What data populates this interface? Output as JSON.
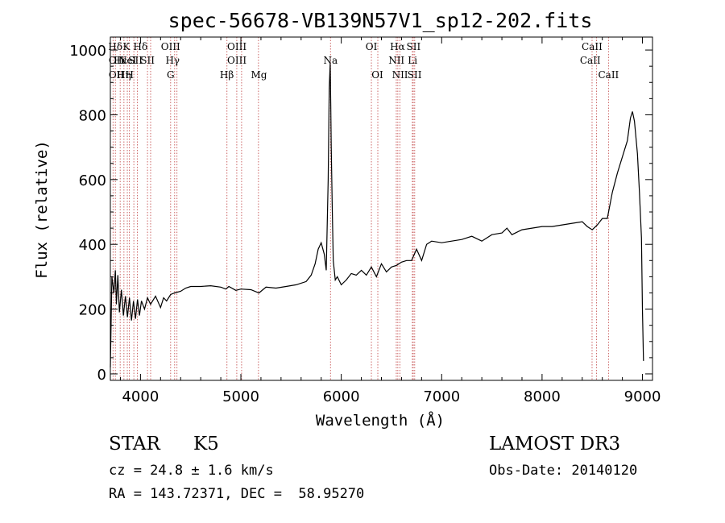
{
  "chart_data": {
    "type": "line",
    "title": "spec-56678-VB139N57V1_sp12-202.fits",
    "xlabel": "Wavelength (Å)",
    "ylabel": "Flux (relative)",
    "xlim": [
      3700,
      9100
    ],
    "ylim": [
      -20,
      1040
    ],
    "xticks": [
      4000,
      5000,
      6000,
      7000,
      8000,
      9000
    ],
    "yticks": [
      0,
      200,
      400,
      600,
      800,
      1000
    ],
    "grid": false,
    "colors": {
      "line": "#000000",
      "marker": "#cc6666"
    },
    "series": [
      {
        "x": [
          3700,
          3715,
          3735,
          3750,
          3760,
          3775,
          3790,
          3810,
          3830,
          3850,
          3870,
          3890,
          3910,
          3930,
          3950,
          3970,
          3990,
          4010,
          4040,
          4070,
          4100,
          4150,
          4200,
          4230,
          4260,
          4300,
          4340,
          4400,
          4450,
          4500,
          4600,
          4700,
          4800,
          4850,
          4880,
          4950,
          5000,
          5100,
          5180,
          5250,
          5350,
          5450,
          5550,
          5650,
          5700,
          5740,
          5770,
          5800,
          5830,
          5850,
          5870,
          5880,
          5890,
          5895,
          5900,
          5910,
          5920,
          5940,
          5960,
          6000,
          6050,
          6100,
          6150,
          6200,
          6250,
          6300,
          6350,
          6400,
          6450,
          6500,
          6550,
          6600,
          6650,
          6700,
          6750,
          6800,
          6850,
          6900,
          7000,
          7100,
          7200,
          7300,
          7400,
          7500,
          7600,
          7650,
          7700,
          7800,
          7900,
          8000,
          8100,
          8200,
          8300,
          8400,
          8450,
          8500,
          8550,
          8600,
          8650,
          8700,
          8750,
          8800,
          8850,
          8880,
          8900,
          8920,
          8950,
          8970,
          8990,
          9000,
          9010
        ],
        "y": [
          20,
          300,
          250,
          320,
          215,
          305,
          190,
          260,
          180,
          240,
          175,
          235,
          165,
          225,
          170,
          230,
          180,
          225,
          200,
          235,
          215,
          240,
          205,
          235,
          225,
          245,
          250,
          255,
          265,
          270,
          270,
          272,
          268,
          262,
          270,
          258,
          262,
          260,
          250,
          268,
          265,
          270,
          275,
          285,
          305,
          340,
          385,
          405,
          370,
          320,
          600,
          880,
          960,
          830,
          700,
          520,
          350,
          290,
          300,
          275,
          290,
          310,
          305,
          320,
          305,
          330,
          300,
          340,
          315,
          330,
          335,
          345,
          350,
          350,
          385,
          350,
          400,
          410,
          405,
          410,
          415,
          425,
          410,
          430,
          435,
          450,
          430,
          445,
          450,
          455,
          455,
          460,
          465,
          470,
          455,
          445,
          460,
          480,
          480,
          560,
          620,
          670,
          720,
          790,
          810,
          780,
          680,
          560,
          420,
          200,
          40
        ]
      }
    ],
    "line_labels": [
      {
        "x": 3750,
        "text": "Hδ",
        "row": 0
      },
      {
        "x": 3760,
        "text": "OII",
        "row": 1
      },
      {
        "x": 3760,
        "text": "OII",
        "row": 2
      },
      {
        "x": 3800,
        "text": "Hε",
        "row": 1
      },
      {
        "x": 3835,
        "text": "Hη",
        "row": 2
      },
      {
        "x": 3860,
        "text": "K",
        "row": 0
      },
      {
        "x": 3870,
        "text": "NeI",
        "row": 1
      },
      {
        "x": 3890,
        "text": "H",
        "row": 2
      },
      {
        "x": 3950,
        "text": "SII",
        "row": 1
      },
      {
        "x": 4000,
        "text": "Hδ",
        "row": 0
      },
      {
        "x": 4070,
        "text": "SII",
        "row": 1
      },
      {
        "x": 4300,
        "text": "OIII",
        "row": 0
      },
      {
        "x": 4320,
        "text": "Hγ",
        "row": 1
      },
      {
        "x": 4300,
        "text": "G",
        "row": 2
      },
      {
        "x": 4860,
        "text": "Hβ",
        "row": 2
      },
      {
        "x": 4960,
        "text": "OIII",
        "row": 0
      },
      {
        "x": 4960,
        "text": "OIII",
        "row": 1
      },
      {
        "x": 5180,
        "text": "Mg",
        "row": 2
      },
      {
        "x": 5893,
        "text": "Na",
        "row": 1
      },
      {
        "x": 6300,
        "text": "OI",
        "row": 0
      },
      {
        "x": 6360,
        "text": "OI",
        "row": 2
      },
      {
        "x": 6560,
        "text": "Hα",
        "row": 0
      },
      {
        "x": 6550,
        "text": "NII",
        "row": 1
      },
      {
        "x": 6585,
        "text": "NII",
        "row": 2
      },
      {
        "x": 6720,
        "text": "SII",
        "row": 0
      },
      {
        "x": 6710,
        "text": "Li",
        "row": 1
      },
      {
        "x": 6730,
        "text": "SII",
        "row": 2
      },
      {
        "x": 8498,
        "text": "CaII",
        "row": 0
      },
      {
        "x": 8480,
        "text": "CaII",
        "row": 1
      },
      {
        "x": 8662,
        "text": "CaII",
        "row": 2
      }
    ],
    "line_markers": [
      3727,
      3750,
      3798,
      3835,
      3869,
      3889,
      3934,
      3969,
      4070,
      4101,
      4300,
      4340,
      4363,
      4861,
      4959,
      5007,
      5175,
      5893,
      6300,
      6364,
      6548,
      6563,
      6584,
      6708,
      6717,
      6731,
      8498,
      8542,
      8662
    ]
  },
  "info": {
    "object_class": "STAR",
    "subclass": "K5",
    "redshift": "cz = 24.8 ± 1.6 km/s",
    "coords": "RA = 143.72371, DEC =  58.95270",
    "survey": "LAMOST DR3",
    "obs_date": "Obs-Date: 20140120"
  }
}
